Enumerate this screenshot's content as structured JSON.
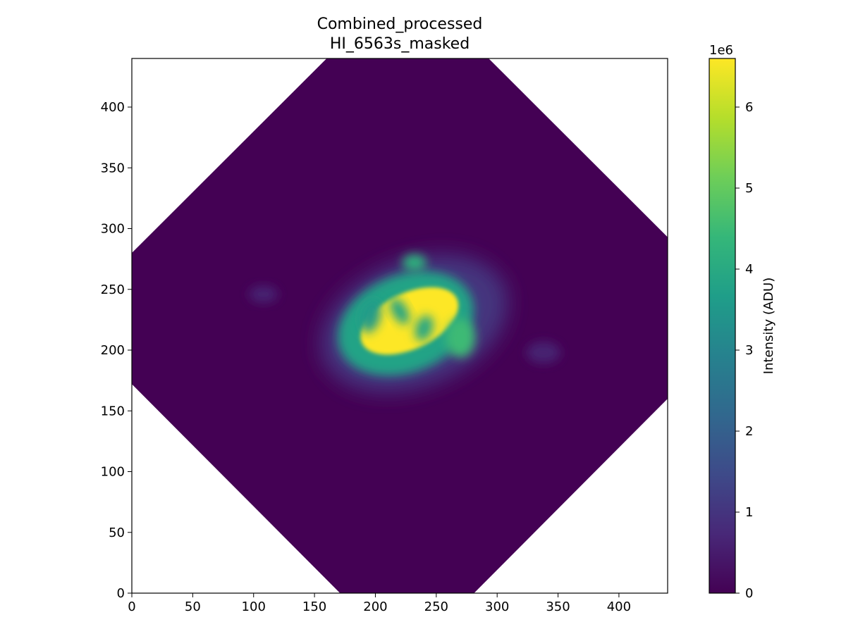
{
  "chart_data": {
    "type": "heatmap",
    "title": [
      "Combined_processed",
      "HI_6563s_masked"
    ],
    "xlabel": "",
    "ylabel": "",
    "xlim": [
      0,
      440
    ],
    "ylim": [
      0,
      440
    ],
    "x_ticks": [
      0,
      50,
      100,
      150,
      200,
      250,
      300,
      350,
      400
    ],
    "y_ticks": [
      0,
      50,
      100,
      150,
      200,
      250,
      300,
      350,
      400
    ],
    "grid": false,
    "colormap": "viridis",
    "colormap_stops": [
      "#440154",
      "#482878",
      "#3e4a89",
      "#31688e",
      "#26828e",
      "#1f9e89",
      "#35b779",
      "#6ece58",
      "#b5de2b",
      "#fde725"
    ],
    "masked_region": {
      "shape": "rotated-square",
      "outline_points": [
        [
          171,
          0
        ],
        [
          281,
          0
        ],
        [
          440,
          160
        ],
        [
          440,
          293
        ],
        [
          293,
          440
        ],
        [
          160,
          440
        ],
        [
          0,
          280
        ],
        [
          0,
          172
        ]
      ],
      "fill_value": 0
    },
    "colorbar": {
      "label": "Intensity (ADU)",
      "scale_label": "1e6",
      "range": [
        0,
        6.6
      ],
      "ticks": [
        0,
        1,
        2,
        3,
        4,
        5,
        6
      ]
    },
    "emission_features": [
      {
        "name": "halo",
        "center": [
          232,
          222
        ],
        "radii": [
          80,
          52
        ],
        "angle_deg": -22,
        "value": 1.0
      },
      {
        "name": "shell",
        "center": [
          225,
          222
        ],
        "radii": [
          58,
          40
        ],
        "angle_deg": -22,
        "value": 3.8
      },
      {
        "name": "core",
        "center": [
          228,
          224
        ],
        "radii": [
          43,
          23
        ],
        "angle_deg": -25,
        "value": 6.6
      },
      {
        "name": "knot-north",
        "center": [
          232,
          272
        ],
        "radii": [
          10,
          7
        ],
        "angle_deg": 0,
        "value": 4.2
      },
      {
        "name": "knot-east",
        "center": [
          270,
          210
        ],
        "radii": [
          12,
          16
        ],
        "angle_deg": 0,
        "value": 4.5
      },
      {
        "name": "jet-west",
        "center": [
          108,
          246
        ],
        "radii": [
          12,
          7
        ],
        "angle_deg": 0,
        "value": 0.6
      },
      {
        "name": "jet-east",
        "center": [
          338,
          198
        ],
        "radii": [
          14,
          9
        ],
        "angle_deg": 0,
        "value": 0.6
      },
      {
        "name": "dark-filament-1",
        "center": [
          196,
          228
        ],
        "radii": [
          8,
          14
        ],
        "angle_deg": 15,
        "value": 3.6
      },
      {
        "name": "dark-filament-2",
        "center": [
          220,
          232
        ],
        "radii": [
          6,
          12
        ],
        "angle_deg": -30,
        "value": 3.8
      },
      {
        "name": "dark-filament-3",
        "center": [
          240,
          218
        ],
        "radii": [
          7,
          11
        ],
        "angle_deg": 20,
        "value": 3.9
      }
    ]
  }
}
